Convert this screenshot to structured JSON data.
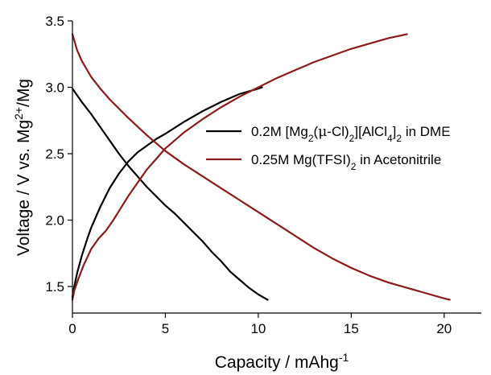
{
  "chart_data": {
    "type": "line",
    "xlabel": {
      "main": "Capacity / mAhg",
      "sup": "-1"
    },
    "ylabel": {
      "main": "Voltage / V vs. Mg",
      "sup": "2+",
      "tail": "/Mg"
    },
    "xlim": [
      0,
      22
    ],
    "ylim": [
      1.3,
      3.5
    ],
    "xticks": [
      0,
      5,
      10,
      15,
      20
    ],
    "yticks": [
      1.5,
      2.0,
      2.5,
      3.0,
      3.5
    ],
    "xtick_labels": [
      "0",
      "5",
      "10",
      "15",
      "20"
    ],
    "ytick_labels": [
      "1.5",
      "2.0",
      "2.5",
      "3.0",
      "3.5"
    ],
    "legend_position": "center-right",
    "series": [
      {
        "name": "0.2M [Mg2(μ-Cl)2][AlCl4]2 in DME",
        "label_parts": [
          {
            "t": "0.2M [Mg"
          },
          {
            "t": "2",
            "s": "sub"
          },
          {
            "t": "("
          },
          {
            "t": "μ",
            "s": "mu"
          },
          {
            "t": "-Cl)"
          },
          {
            "t": "2",
            "s": "sub"
          },
          {
            "t": "][AlCl"
          },
          {
            "t": "4",
            "s": "sub"
          },
          {
            "t": "]"
          },
          {
            "t": "2",
            "s": "sub"
          },
          {
            "t": " in DME"
          }
        ],
        "color": "#000000",
        "curves": [
          {
            "x": [
              0,
              0.5,
              1,
              1.5,
              2,
              2.5,
              3,
              3.5,
              4,
              4.5,
              5,
              5.5,
              6,
              6.5,
              7,
              7.5,
              8,
              8.5,
              9,
              9.5,
              10,
              10.5
            ],
            "y": [
              2.99,
              2.89,
              2.8,
              2.7,
              2.6,
              2.5,
              2.41,
              2.33,
              2.25,
              2.18,
              2.11,
              2.05,
              1.98,
              1.91,
              1.84,
              1.76,
              1.69,
              1.61,
              1.55,
              1.49,
              1.44,
              1.4
            ]
          },
          {
            "x": [
              0,
              0.1,
              0.25,
              0.5,
              0.8,
              1,
              1.5,
              2,
              2.5,
              3,
              3.5,
              4,
              4.5,
              5,
              6,
              7,
              8,
              9,
              9.5,
              10,
              10.2
            ],
            "y": [
              1.42,
              1.5,
              1.6,
              1.73,
              1.86,
              1.94,
              2.1,
              2.24,
              2.35,
              2.44,
              2.51,
              2.56,
              2.61,
              2.65,
              2.74,
              2.82,
              2.89,
              2.95,
              2.97,
              2.99,
              3.0
            ]
          }
        ]
      },
      {
        "name": "0.25M Mg(TFSI)2 in Acetonitrile",
        "label_parts": [
          {
            "t": "0.25M Mg(TFSI)"
          },
          {
            "t": "2",
            "s": "sub"
          },
          {
            "t": " in Acetonitrile"
          }
        ],
        "color": "#8b1a1a",
        "curves": [
          {
            "x": [
              0,
              0.25,
              0.5,
              1,
              1.5,
              2,
              3,
              4,
              5,
              6,
              7,
              8,
              9,
              10,
              11,
              12,
              13,
              14,
              15,
              16,
              17,
              18,
              19,
              20,
              20.3
            ],
            "y": [
              3.4,
              3.28,
              3.2,
              3.08,
              2.99,
              2.91,
              2.77,
              2.64,
              2.52,
              2.42,
              2.33,
              2.24,
              2.15,
              2.06,
              1.97,
              1.88,
              1.79,
              1.71,
              1.64,
              1.58,
              1.53,
              1.49,
              1.45,
              1.41,
              1.4
            ]
          },
          {
            "x": [
              0,
              0.1,
              0.3,
              0.6,
              1,
              1.4,
              1.8,
              2.2,
              2.6,
              3,
              3.5,
              4,
              4.5,
              5,
              6,
              7,
              8,
              9,
              10,
              11,
              12,
              13,
              14,
              15,
              16,
              17,
              18
            ],
            "y": [
              1.4,
              1.47,
              1.55,
              1.66,
              1.78,
              1.86,
              1.92,
              2.0,
              2.09,
              2.18,
              2.28,
              2.38,
              2.46,
              2.54,
              2.66,
              2.76,
              2.85,
              2.93,
              3.0,
              3.07,
              3.13,
              3.19,
              3.24,
              3.29,
              3.33,
              3.37,
              3.4
            ]
          }
        ]
      }
    ]
  }
}
